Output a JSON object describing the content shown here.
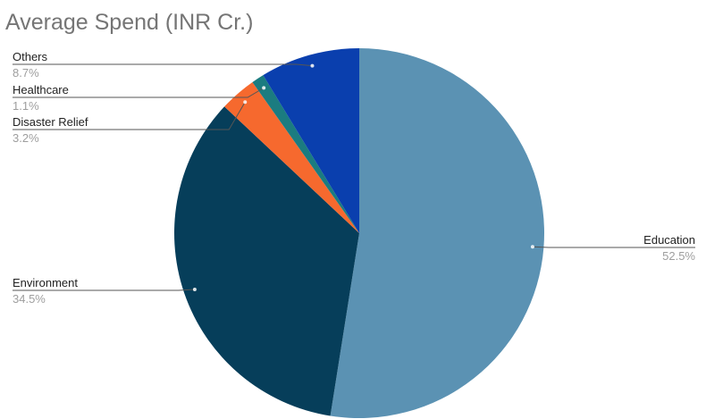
{
  "chart_data": {
    "type": "pie",
    "title": "Average Spend (INR Cr.)",
    "slices": [
      {
        "label": "Education",
        "value": 52.5,
        "percent_label": "52.5%",
        "color": "#5b92b3"
      },
      {
        "label": "Environment",
        "value": 34.5,
        "percent_label": "34.5%",
        "color": "#063e5a"
      },
      {
        "label": "Disaster Relief",
        "value": 3.2,
        "percent_label": "3.2%",
        "color": "#f6692e"
      },
      {
        "label": "Healthcare",
        "value": 1.1,
        "percent_label": "1.1%",
        "color": "#1b7c80"
      },
      {
        "label": "Others",
        "value": 8.7,
        "percent_label": "8.7%",
        "color": "#0a3fae"
      }
    ],
    "start_angle": "12 o'clock",
    "direction": "clockwise",
    "legend": "labels with leader lines"
  }
}
